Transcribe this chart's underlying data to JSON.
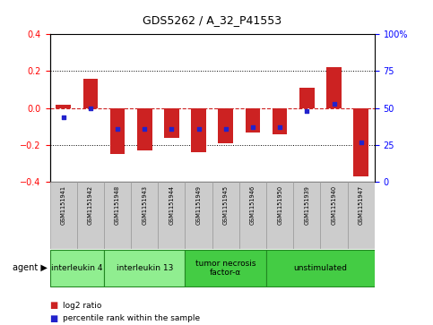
{
  "title": "GDS5262 / A_32_P41553",
  "samples": [
    "GSM1151941",
    "GSM1151942",
    "GSM1151948",
    "GSM1151943",
    "GSM1151944",
    "GSM1151949",
    "GSM1151945",
    "GSM1151946",
    "GSM1151950",
    "GSM1151939",
    "GSM1151940",
    "GSM1151947"
  ],
  "log2_ratio": [
    0.02,
    0.16,
    -0.25,
    -0.23,
    -0.16,
    -0.24,
    -0.19,
    -0.13,
    -0.14,
    0.11,
    0.22,
    -0.37
  ],
  "percentile": [
    44,
    50,
    36,
    36,
    36,
    36,
    36,
    37,
    37,
    48,
    53,
    27
  ],
  "agents": [
    {
      "label": "interleukin 4",
      "start": 0,
      "end": 2,
      "color": "#90ee90"
    },
    {
      "label": "interleukin 13",
      "start": 2,
      "end": 5,
      "color": "#90ee90"
    },
    {
      "label": "tumor necrosis\nfactor-α",
      "start": 5,
      "end": 8,
      "color": "#44cc44"
    },
    {
      "label": "unstimulated",
      "start": 8,
      "end": 12,
      "color": "#44cc44"
    }
  ],
  "ylim": [
    -0.4,
    0.4
  ],
  "y2lim": [
    0,
    100
  ],
  "yticks": [
    -0.4,
    -0.2,
    0.0,
    0.2,
    0.4
  ],
  "y2ticks": [
    0,
    25,
    50,
    75,
    100
  ],
  "bar_color": "#cc2222",
  "dot_color": "#2222cc",
  "zero_line_color": "#cc2222",
  "bg_plot": "#ffffff",
  "bg_label": "#cccccc",
  "legend_log2": "log2 ratio",
  "legend_pct": "percentile rank within the sample"
}
